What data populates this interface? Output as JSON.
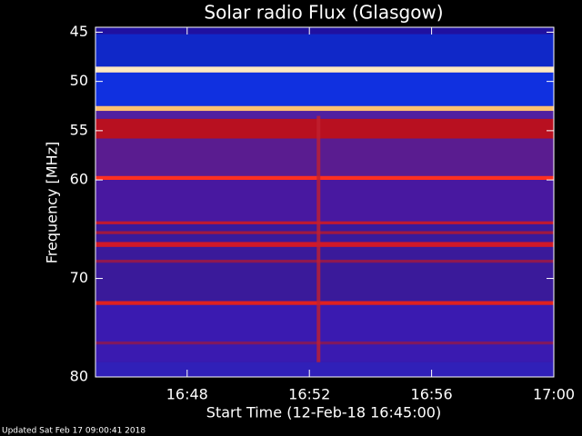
{
  "chart_data": {
    "type": "spectrogram",
    "title": "Solar radio Flux (Glasgow)",
    "xlabel": "Start Time (12-Feb-18 16:45:00)",
    "ylabel": "Frequency [MHz]",
    "footer": "Updated Sat Feb 17 09:00:41 2018",
    "xlim": [
      1005,
      1020
    ],
    "xticks": [
      {
        "value": 1008,
        "label": "16:48"
      },
      {
        "value": 1012,
        "label": "16:52"
      },
      {
        "value": 1016,
        "label": "16:56"
      },
      {
        "value": 1020,
        "label": "17:00"
      }
    ],
    "ylim": [
      44.5,
      80
    ],
    "yticks": [
      45,
      50,
      55,
      60,
      70,
      80
    ],
    "background": "#3a1a9a",
    "bands": [
      {
        "from": 44.5,
        "to": 45.2,
        "color": "#2010a0"
      },
      {
        "from": 45.2,
        "to": 48.5,
        "color": "#1028c8"
      },
      {
        "from": 48.5,
        "to": 49.1,
        "color": "#ffe8c0"
      },
      {
        "from": 49.1,
        "to": 52.5,
        "color": "#1030e0"
      },
      {
        "from": 52.5,
        "to": 53.0,
        "color": "#ffc070"
      },
      {
        "from": 53.0,
        "to": 53.8,
        "color": "#5020a0"
      },
      {
        "from": 53.8,
        "to": 55.8,
        "color": "#b81020"
      },
      {
        "from": 55.8,
        "to": 59.6,
        "color": "#5a1c90"
      },
      {
        "from": 59.6,
        "to": 60.0,
        "color": "#ff3020"
      },
      {
        "from": 60.0,
        "to": 64.2,
        "color": "#4818a0"
      },
      {
        "from": 64.2,
        "to": 64.5,
        "color": "#c01830"
      },
      {
        "from": 65.2,
        "to": 65.5,
        "color": "#a01840"
      },
      {
        "from": 66.3,
        "to": 66.8,
        "color": "#d01828"
      },
      {
        "from": 68.1,
        "to": 68.4,
        "color": "#901850"
      },
      {
        "from": 72.3,
        "to": 72.7,
        "color": "#e02020"
      },
      {
        "from": 72.7,
        "to": 78.5,
        "color": "#3a1ab0"
      },
      {
        "from": 76.4,
        "to": 76.7,
        "color": "#801860"
      },
      {
        "from": 78.5,
        "to": 80,
        "color": "#3020b8"
      }
    ],
    "burst": {
      "time": 1012.3,
      "from": 53.5,
      "to": 78.5,
      "color": "#c02030"
    }
  }
}
